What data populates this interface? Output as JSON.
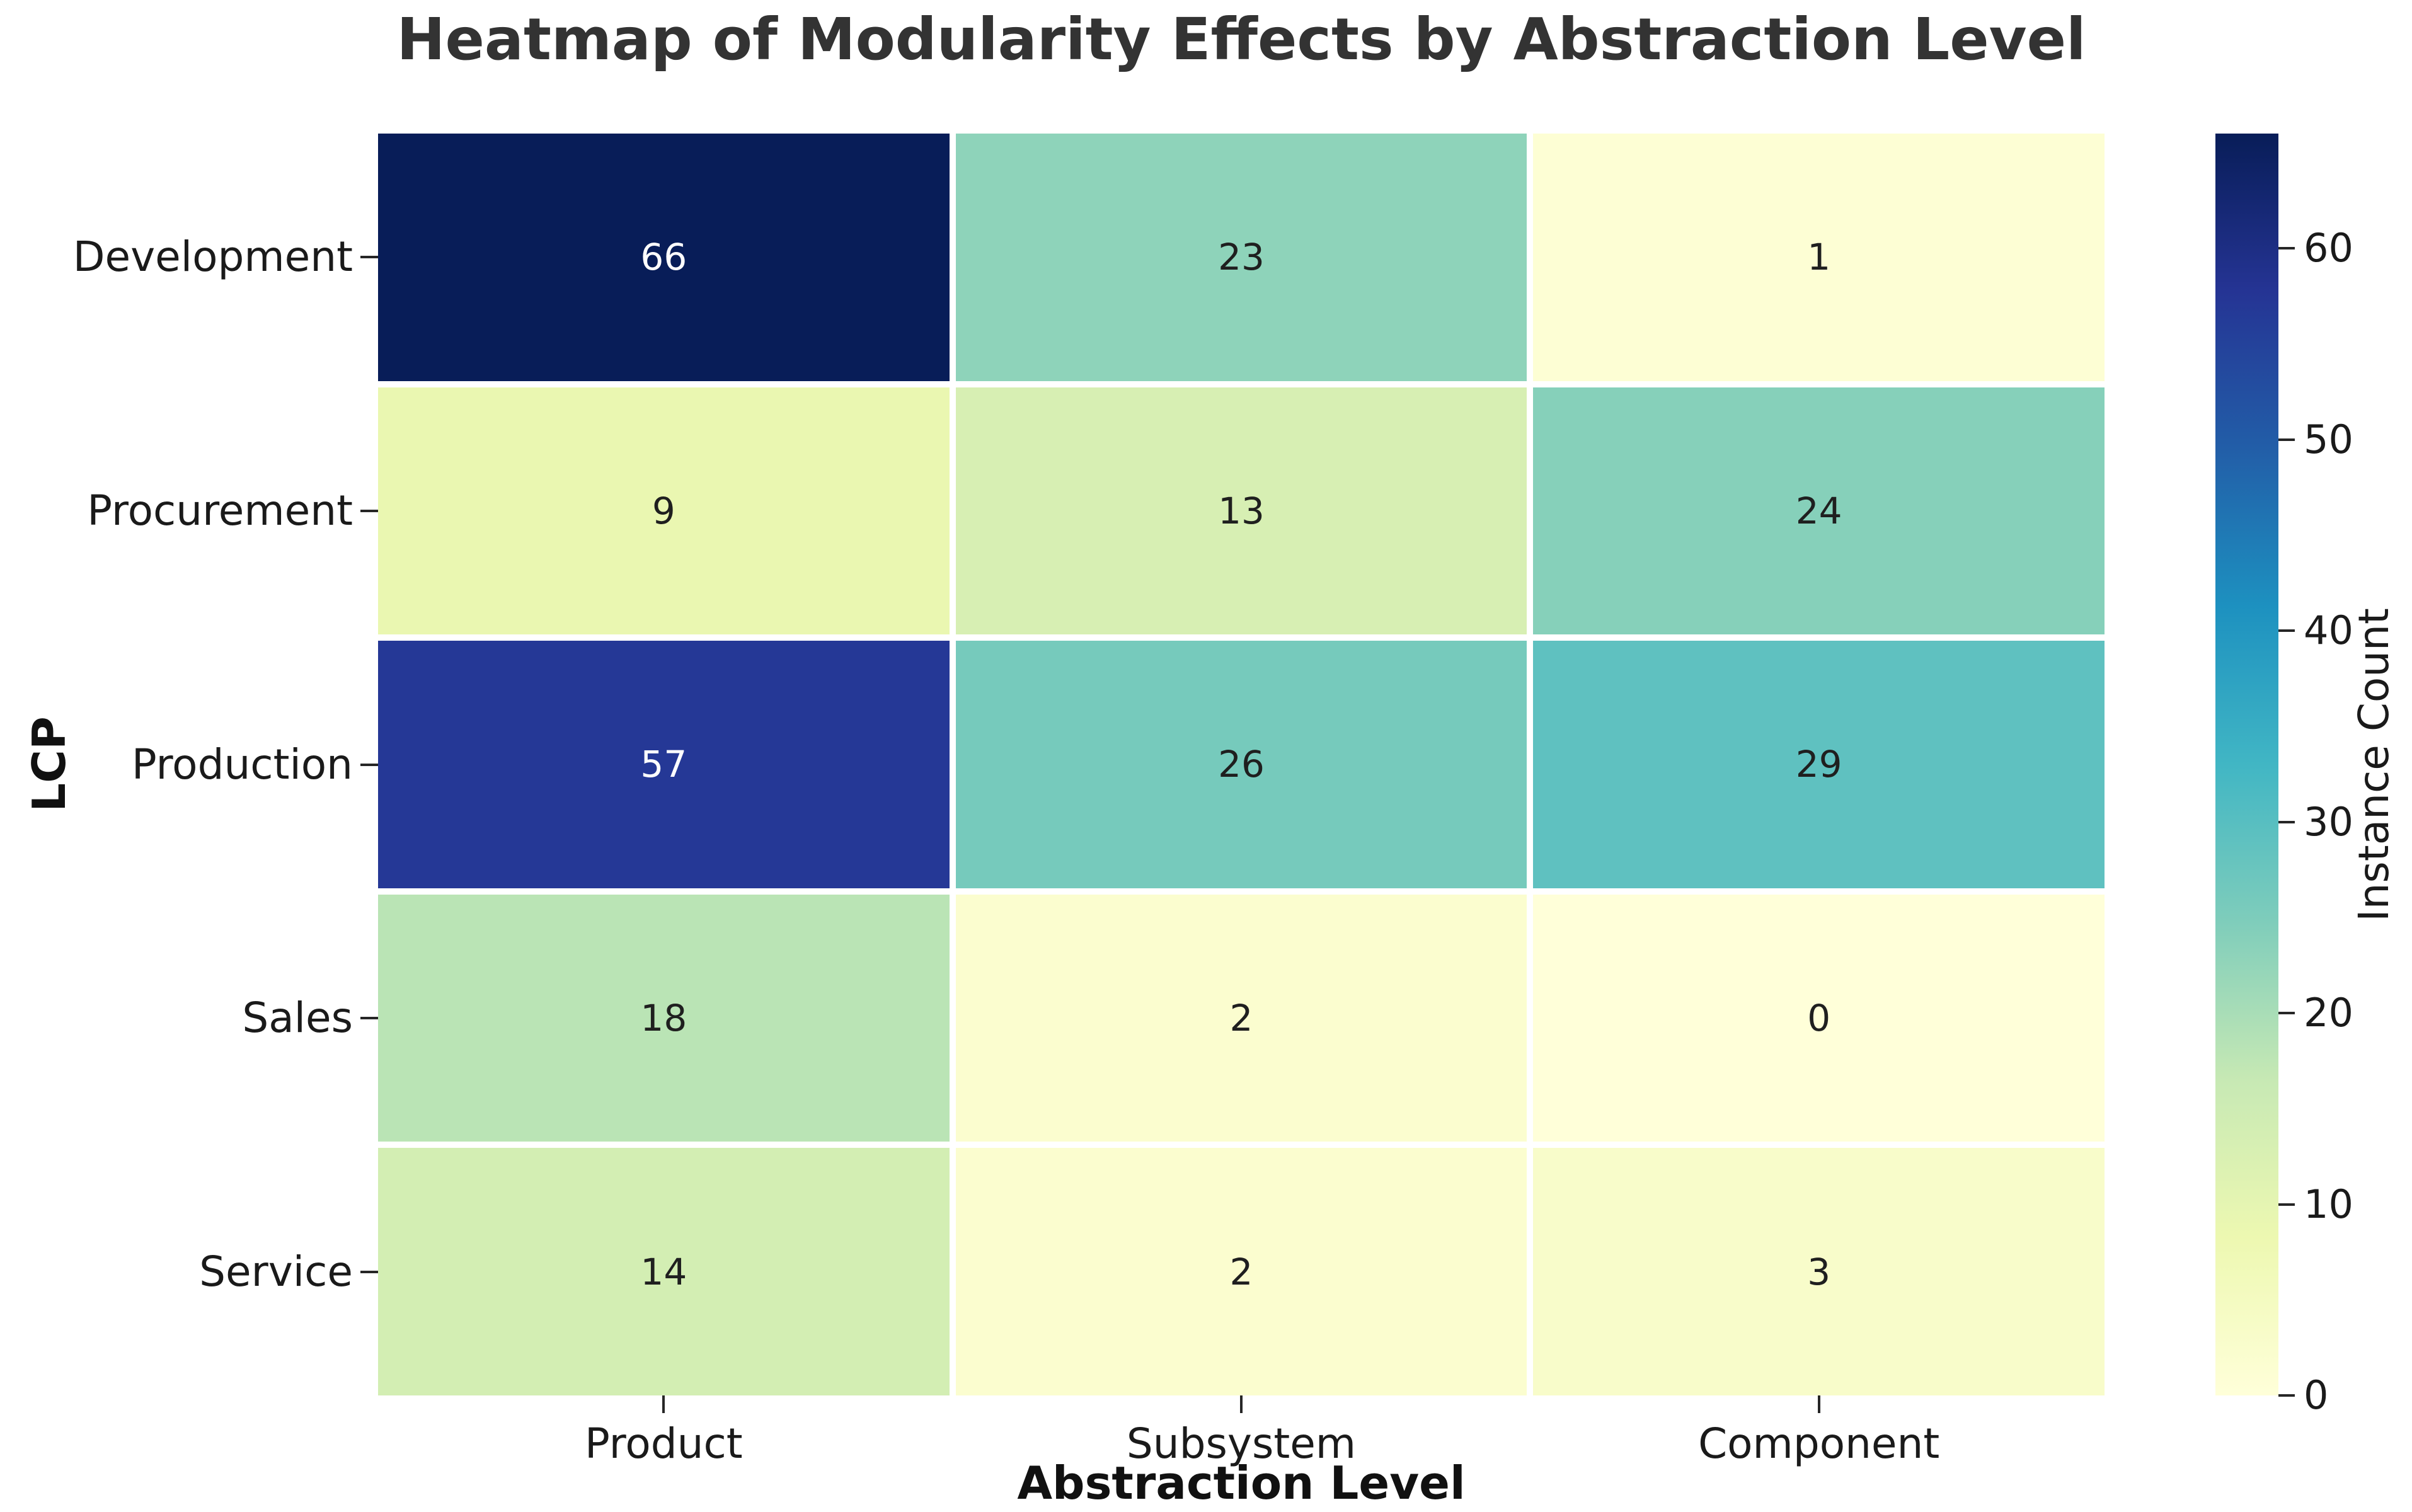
{
  "chart_data": {
    "type": "heatmap",
    "title": "Heatmap of Modularity Effects by Abstraction Level",
    "xlabel": "Abstraction Level",
    "ylabel": "LCP",
    "x_categories": [
      "Product",
      "Subsystem",
      "Component"
    ],
    "y_categories": [
      "Development",
      "Procurement",
      "Production",
      "Sales",
      "Service"
    ],
    "values": [
      [
        66,
        23,
        1
      ],
      [
        9,
        13,
        24
      ],
      [
        57,
        26,
        29
      ],
      [
        18,
        2,
        0
      ],
      [
        14,
        2,
        3
      ]
    ],
    "vmin": 0,
    "vmax": 66,
    "annotated": true,
    "grid_gap_color": "#ffffff",
    "colorbar": {
      "label": "Instance Count",
      "ticks": [
        0,
        10,
        20,
        30,
        40,
        50,
        60
      ]
    },
    "colormap": {
      "name": "YlGnBu",
      "stops": [
        "#ffffd9",
        "#edf8b1",
        "#c7e9b4",
        "#7fcdbb",
        "#41b6c4",
        "#1d91c0",
        "#225ea8",
        "#253494",
        "#081d58"
      ]
    },
    "colors": {
      "title_text": "#333333",
      "tick_text": "#1a1a1a",
      "annotation_dark": "#1f1f1f",
      "annotation_light": "#ffffff",
      "background": "#ffffff"
    }
  }
}
